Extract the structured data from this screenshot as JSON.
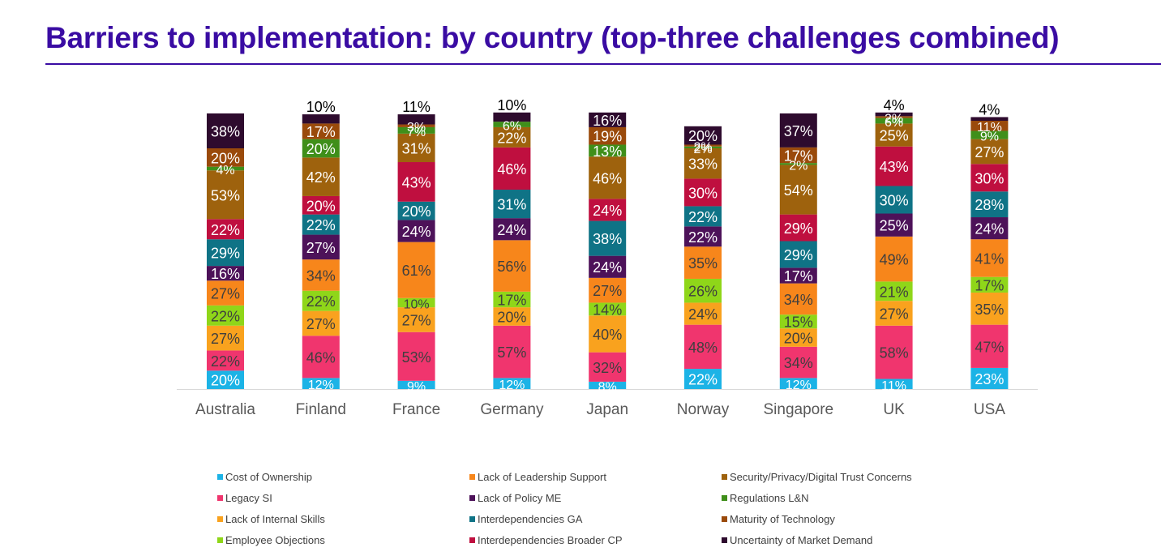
{
  "title": "Barriers to implementation: by country (top-three challenges combined)",
  "chart_data": {
    "type": "bar",
    "stacked": true,
    "categories": [
      "Australia",
      "Finland",
      "France",
      "Germany",
      "Japan",
      "Norway",
      "Singapore",
      "UK",
      "USA"
    ],
    "series": [
      {
        "name": "Cost of Ownership",
        "color": "#1cb3e6",
        "label_color": "#ffffff",
        "values": [
          20,
          12,
          9,
          12,
          8,
          22,
          12,
          11,
          23
        ]
      },
      {
        "name": "Legacy SI",
        "color": "#f0356e",
        "label_color": "#3f3f3f",
        "values": [
          22,
          46,
          53,
          57,
          32,
          48,
          34,
          58,
          47
        ]
      },
      {
        "name": "Lack of Internal Skills",
        "color": "#f9a21e",
        "label_color": "#3f3f3f",
        "values": [
          27,
          27,
          27,
          20,
          40,
          24,
          20,
          27,
          35
        ]
      },
      {
        "name": "Employee Objections",
        "color": "#8fd619",
        "label_color": "#3f3f3f",
        "values": [
          22,
          22,
          10,
          17,
          14,
          26,
          15,
          21,
          17
        ]
      },
      {
        "name": "Lack of Leadership Support",
        "color": "#f7861b",
        "label_color": "#3f3f3f",
        "values": [
          27,
          34,
          61,
          56,
          27,
          35,
          34,
          49,
          41
        ]
      },
      {
        "name": "Lack of Policy ME",
        "color": "#4d1259",
        "label_color": "#ffffff",
        "values": [
          16,
          27,
          24,
          24,
          24,
          22,
          17,
          25,
          24
        ]
      },
      {
        "name": "Interdependencies GA",
        "color": "#0f7386",
        "label_color": "#ffffff",
        "values": [
          29,
          22,
          20,
          31,
          38,
          22,
          29,
          30,
          28
        ]
      },
      {
        "name": "Interdependencies Broader CP",
        "color": "#bf0f3f",
        "label_color": "#ffffff",
        "values": [
          22,
          20,
          43,
          46,
          24,
          30,
          29,
          43,
          30
        ]
      },
      {
        "name": "Security/Privacy/Digital Trust Concerns",
        "color": "#9e620d",
        "label_color": "#ffffff",
        "values": [
          53,
          42,
          31,
          22,
          46,
          33,
          54,
          25,
          27
        ]
      },
      {
        "name": "Regulations L&N",
        "color": "#3f8f1a",
        "label_color": "#ffffff",
        "values": [
          4,
          20,
          7,
          6,
          13,
          2,
          2,
          6,
          9
        ]
      },
      {
        "name": "Maturity of Technology",
        "color": "#9a4a0b",
        "label_color": "#ffffff",
        "values": [
          20,
          17,
          3,
          0,
          19,
          2,
          17,
          2,
          11
        ]
      },
      {
        "name": "Uncertainty of Market Demand",
        "color": "#2e0b2e",
        "label_color": "#ffffff",
        "values": [
          38,
          10,
          11,
          10,
          16,
          20,
          37,
          4,
          4
        ]
      }
    ],
    "ylim": [
      0,
      307
    ],
    "xlabel": "",
    "ylabel": "",
    "legend": "bottom"
  }
}
